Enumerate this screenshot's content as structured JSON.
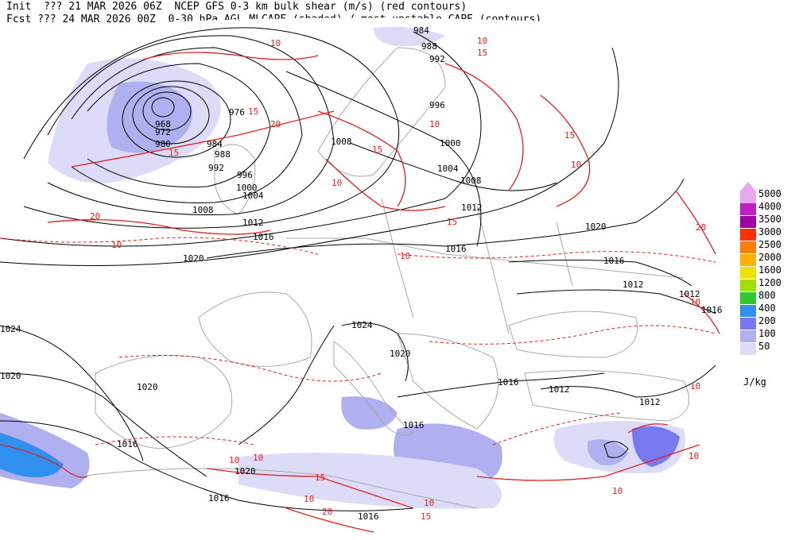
{
  "header": {
    "line1": "Init  ??? 21 MAR 2026 06Z  NCEP GFS 0-3 km bulk shear (m/s) (red contours)",
    "line2": "Fcst ??? 24 MAR 2026 00Z  0-30 hPa AGL MLCAPE (shaded) / most-unstable CAPE (contours)"
  },
  "legend": {
    "unit": "J/kg",
    "items": [
      {
        "label": "5000",
        "color": "#e8a8f0"
      },
      {
        "label": "4000",
        "color": "#c020c0"
      },
      {
        "label": "3500",
        "color": "#a000a0"
      },
      {
        "label": "3000",
        "color": "#ff3000"
      },
      {
        "label": "2500",
        "color": "#ff8000"
      },
      {
        "label": "2000",
        "color": "#ffb000"
      },
      {
        "label": "1600",
        "color": "#f0e000"
      },
      {
        "label": "1200",
        "color": "#a0e000"
      },
      {
        "label": "800",
        "color": "#30c830"
      },
      {
        "label": "400",
        "color": "#3090f0"
      },
      {
        "label": "200",
        "color": "#7878f0"
      },
      {
        "label": "100",
        "color": "#b0b0f0"
      },
      {
        "label": "50",
        "color": "#dcdcf8"
      }
    ]
  },
  "isobar_labels": [
    {
      "text": "984"
    },
    {
      "text": "988"
    },
    {
      "text": "992"
    },
    {
      "text": "996"
    },
    {
      "text": "976"
    },
    {
      "text": "968"
    },
    {
      "text": "972"
    },
    {
      "text": "980"
    },
    {
      "text": "984"
    },
    {
      "text": "988"
    },
    {
      "text": "992"
    },
    {
      "text": "996"
    },
    {
      "text": "1000"
    },
    {
      "text": "1004"
    },
    {
      "text": "1008"
    },
    {
      "text": "1012"
    },
    {
      "text": "1016"
    },
    {
      "text": "1020"
    },
    {
      "text": "1024"
    },
    {
      "text": "1020"
    },
    {
      "text": "1020"
    },
    {
      "text": "1016"
    },
    {
      "text": "1020"
    },
    {
      "text": "1016"
    },
    {
      "text": "1016"
    },
    {
      "text": "1008"
    },
    {
      "text": "1000"
    },
    {
      "text": "1004"
    },
    {
      "text": "1008"
    },
    {
      "text": "1012"
    },
    {
      "text": "1016"
    },
    {
      "text": "1020"
    },
    {
      "text": "1016"
    },
    {
      "text": "1012"
    },
    {
      "text": "1012"
    },
    {
      "text": "1016"
    },
    {
      "text": "1024"
    },
    {
      "text": "1020"
    },
    {
      "text": "1016"
    },
    {
      "text": "1016"
    },
    {
      "text": "1012"
    },
    {
      "text": "1012"
    }
  ],
  "shear_labels": [
    {
      "text": "10"
    },
    {
      "text": "10"
    },
    {
      "text": "15"
    },
    {
      "text": "15"
    },
    {
      "text": "20"
    },
    {
      "text": "15"
    },
    {
      "text": "10"
    },
    {
      "text": "15"
    },
    {
      "text": "10"
    },
    {
      "text": "10"
    },
    {
      "text": "15"
    },
    {
      "text": "20"
    },
    {
      "text": "10"
    },
    {
      "text": "20"
    },
    {
      "text": "10"
    },
    {
      "text": "15"
    },
    {
      "text": "10"
    },
    {
      "text": "10"
    },
    {
      "text": "10"
    },
    {
      "text": "15"
    },
    {
      "text": "10"
    },
    {
      "text": "20"
    },
    {
      "text": "10"
    },
    {
      "text": "15"
    },
    {
      "text": "10"
    },
    {
      "text": "10"
    },
    {
      "text": "10"
    }
  ]
}
